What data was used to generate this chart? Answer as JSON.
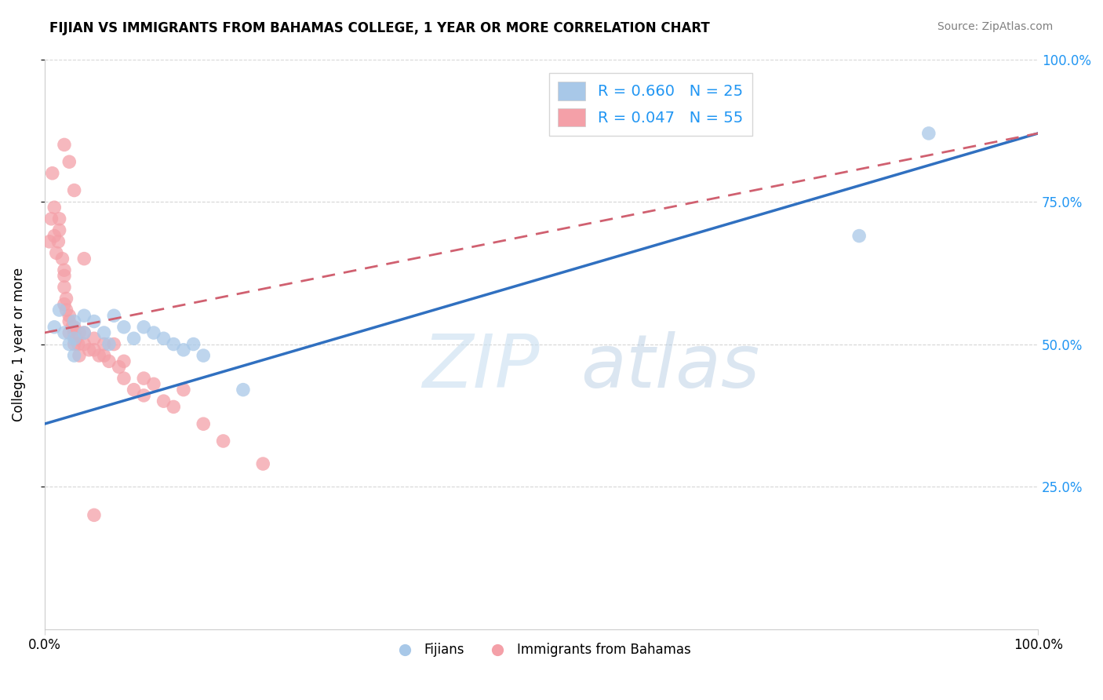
{
  "title": "FIJIAN VS IMMIGRANTS FROM BAHAMAS COLLEGE, 1 YEAR OR MORE CORRELATION CHART",
  "source": "Source: ZipAtlas.com",
  "ylabel": "College, 1 year or more",
  "legend_blue_R": "R = 0.660",
  "legend_blue_N": "N = 25",
  "legend_pink_R": "R = 0.047",
  "legend_pink_N": "N = 55",
  "legend_bottom_blue": "Fijians",
  "legend_bottom_pink": "Immigrants from Bahamas",
  "blue_color": "#a8c8e8",
  "pink_color": "#f4a0a8",
  "blue_line_color": "#3070c0",
  "pink_line_color": "#d06070",
  "background_color": "#ffffff",
  "blue_scatter_x": [
    0.01,
    0.015,
    0.02,
    0.025,
    0.03,
    0.03,
    0.03,
    0.04,
    0.04,
    0.05,
    0.06,
    0.065,
    0.07,
    0.08,
    0.09,
    0.1,
    0.11,
    0.12,
    0.13,
    0.14,
    0.15,
    0.16,
    0.2,
    0.82,
    0.89
  ],
  "blue_scatter_y": [
    0.53,
    0.56,
    0.52,
    0.5,
    0.51,
    0.54,
    0.48,
    0.55,
    0.52,
    0.54,
    0.52,
    0.5,
    0.55,
    0.53,
    0.51,
    0.53,
    0.52,
    0.51,
    0.5,
    0.49,
    0.5,
    0.48,
    0.42,
    0.69,
    0.87
  ],
  "pink_scatter_x": [
    0.005,
    0.007,
    0.008,
    0.01,
    0.01,
    0.012,
    0.014,
    0.015,
    0.015,
    0.018,
    0.02,
    0.02,
    0.02,
    0.02,
    0.022,
    0.022,
    0.025,
    0.025,
    0.025,
    0.028,
    0.03,
    0.03,
    0.03,
    0.032,
    0.034,
    0.035,
    0.035,
    0.04,
    0.04,
    0.045,
    0.05,
    0.05,
    0.055,
    0.06,
    0.06,
    0.065,
    0.07,
    0.075,
    0.08,
    0.08,
    0.09,
    0.1,
    0.1,
    0.11,
    0.12,
    0.13,
    0.14,
    0.16,
    0.18,
    0.22,
    0.02,
    0.025,
    0.03,
    0.04,
    0.05
  ],
  "pink_scatter_y": [
    0.68,
    0.72,
    0.8,
    0.69,
    0.74,
    0.66,
    0.68,
    0.7,
    0.72,
    0.65,
    0.63,
    0.6,
    0.57,
    0.62,
    0.58,
    0.56,
    0.55,
    0.52,
    0.54,
    0.53,
    0.52,
    0.5,
    0.53,
    0.51,
    0.5,
    0.52,
    0.48,
    0.5,
    0.52,
    0.49,
    0.51,
    0.49,
    0.48,
    0.5,
    0.48,
    0.47,
    0.5,
    0.46,
    0.44,
    0.47,
    0.42,
    0.41,
    0.44,
    0.43,
    0.4,
    0.39,
    0.42,
    0.36,
    0.33,
    0.29,
    0.85,
    0.82,
    0.77,
    0.65,
    0.2
  ],
  "blue_line_x0": 0.0,
  "blue_line_y0": 0.36,
  "blue_line_x1": 1.0,
  "blue_line_y1": 0.87,
  "pink_line_x0": 0.0,
  "pink_line_y0": 0.52,
  "pink_line_x1": 1.0,
  "pink_line_y1": 0.87,
  "xlim": [
    0.0,
    1.0
  ],
  "ylim": [
    0.0,
    1.0
  ]
}
